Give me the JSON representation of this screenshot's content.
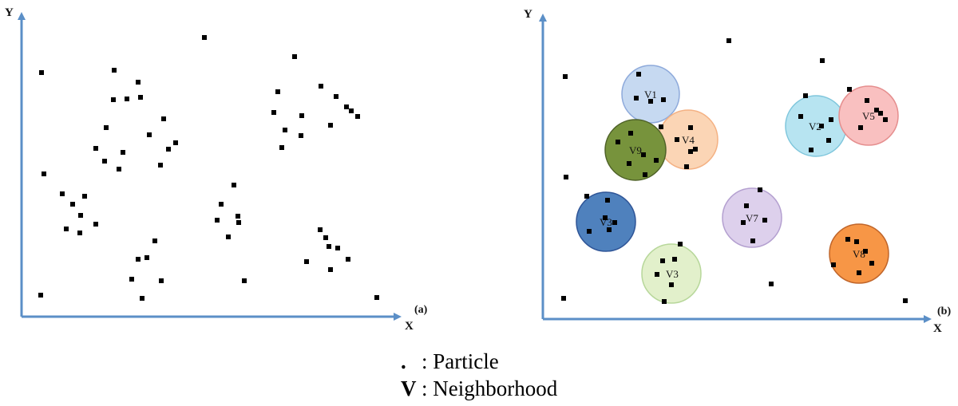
{
  "panel_a": {
    "y_label": "Y",
    "x_label": "X",
    "tag": "(a)"
  },
  "panel_b": {
    "y_label": "Y",
    "x_label": "X",
    "tag": "(b)",
    "neighborhoods": [
      {
        "label": "V1",
        "fill": "#c6d9f1",
        "stroke": "#8eaadb"
      },
      {
        "label": "V4",
        "fill": "#fbd5b5",
        "stroke": "#f4b183"
      },
      {
        "label": "V9",
        "fill": "#77933c",
        "stroke": "#4f6228"
      },
      {
        "label": "V2",
        "fill": "#b7e4f1",
        "stroke": "#7fc6dc"
      },
      {
        "label": "V5",
        "fill": "#f9c0c0",
        "stroke": "#e58e8e"
      },
      {
        "label": "V3",
        "fill": "#4f81bd",
        "stroke": "#2f5597"
      },
      {
        "label": "V7",
        "fill": "#ddd0ec",
        "stroke": "#b4a0d0"
      },
      {
        "label": "V3",
        "fill": "#e2f0cb",
        "stroke": "#b7d79a"
      },
      {
        "label": "V8",
        "fill": "#f79646",
        "stroke": "#c0652a"
      }
    ]
  },
  "colors": {
    "axis": "#5b8fc7",
    "particle": "#000000"
  },
  "legend": {
    "particle_symbol": ".",
    "particle_text": ": Particle",
    "neighborhood_symbol": "V",
    "neighborhood_text": ": Neighborhood"
  }
}
